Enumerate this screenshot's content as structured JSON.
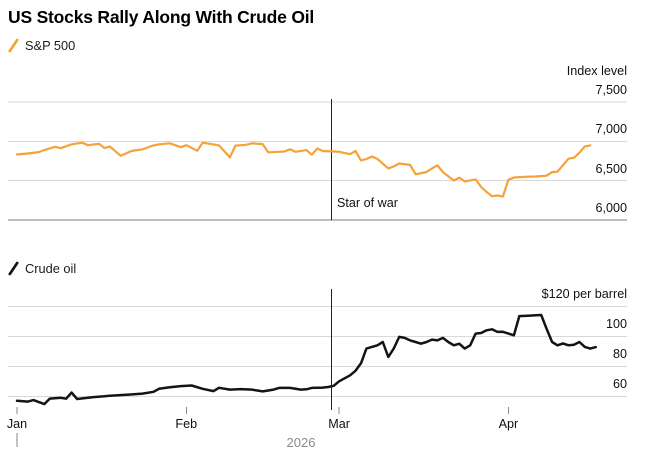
{
  "title": "US Stocks Rally Along With Crude Oil",
  "colors": {
    "sp500_line": "#F7A139",
    "crude_line": "#141414",
    "grid": "#D9D9D9",
    "baseline": "#7D7D7D",
    "war_line": "#222222",
    "tick": "#8A8A8A",
    "month_label": "#111111",
    "year_label": "#8C8C8C"
  },
  "x_axis": {
    "month_ticks": [
      {
        "label": "Jan",
        "day": 1
      },
      {
        "label": "Feb",
        "day": 32
      },
      {
        "label": "Mar",
        "day": 60
      },
      {
        "label": "Apr",
        "day": 91
      }
    ],
    "year": "2026"
  },
  "chart_data": [
    {
      "type": "line",
      "legend": "S&P 500",
      "unit_label": "Index level",
      "color": "#F7A139",
      "x_unit": "day of year 2026",
      "xlim_days": [
        1,
        108
      ],
      "ylim": [
        6000,
        7750
      ],
      "y_ticks": [
        7500,
        7000,
        6500,
        6000
      ],
      "y_tick_labels": [
        "7,500",
        "7,000",
        "6,500",
        "6,000"
      ],
      "baseline_value": 6000,
      "annotation": {
        "label": "Star of war",
        "day": 58.6
      },
      "points": [
        [
          1,
          6832
        ],
        [
          3,
          6845
        ],
        [
          5,
          6862
        ],
        [
          6,
          6888
        ],
        [
          8,
          6930
        ],
        [
          9,
          6912
        ],
        [
          11,
          6962
        ],
        [
          13,
          6982
        ],
        [
          14,
          6950
        ],
        [
          16,
          6968
        ],
        [
          17,
          6915
        ],
        [
          18,
          6935
        ],
        [
          20,
          6815
        ],
        [
          22,
          6878
        ],
        [
          24,
          6898
        ],
        [
          26,
          6948
        ],
        [
          27,
          6962
        ],
        [
          29,
          6975
        ],
        [
          31,
          6925
        ],
        [
          32,
          6950
        ],
        [
          34,
          6880
        ],
        [
          35,
          6982
        ],
        [
          37,
          6960
        ],
        [
          38,
          6948
        ],
        [
          40,
          6795
        ],
        [
          41,
          6945
        ],
        [
          43,
          6956
        ],
        [
          44,
          6975
        ],
        [
          46,
          6965
        ],
        [
          47,
          6860
        ],
        [
          49,
          6866
        ],
        [
          50,
          6870
        ],
        [
          51,
          6898
        ],
        [
          52,
          6866
        ],
        [
          54,
          6888
        ],
        [
          55,
          6830
        ],
        [
          56,
          6908
        ],
        [
          57,
          6876
        ],
        [
          59,
          6870
        ],
        [
          60,
          6866
        ],
        [
          62,
          6836
        ],
        [
          63,
          6878
        ],
        [
          64,
          6756
        ],
        [
          65,
          6775
        ],
        [
          66,
          6806
        ],
        [
          67,
          6776
        ],
        [
          69,
          6655
        ],
        [
          70,
          6680
        ],
        [
          71,
          6718
        ],
        [
          73,
          6700
        ],
        [
          74,
          6580
        ],
        [
          76,
          6610
        ],
        [
          77,
          6655
        ],
        [
          78,
          6695
        ],
        [
          79,
          6610
        ],
        [
          81,
          6500
        ],
        [
          82,
          6538
        ],
        [
          83,
          6490
        ],
        [
          85,
          6515
        ],
        [
          86,
          6420
        ],
        [
          87,
          6355
        ],
        [
          88,
          6302
        ],
        [
          89,
          6310
        ],
        [
          90,
          6298
        ],
        [
          91,
          6510
        ],
        [
          92,
          6540
        ],
        [
          94,
          6548
        ],
        [
          96,
          6552
        ],
        [
          98,
          6562
        ],
        [
          99,
          6608
        ],
        [
          100,
          6615
        ],
        [
          102,
          6778
        ],
        [
          103,
          6790
        ],
        [
          104,
          6855
        ],
        [
          105,
          6935
        ],
        [
          106,
          6948
        ]
      ]
    },
    {
      "type": "line",
      "legend": "Crude oil",
      "unit_label": "$120 per barrel",
      "color": "#141414",
      "x_unit": "day of year 2026",
      "xlim_days": [
        1,
        108
      ],
      "ylim": [
        48,
        120
      ],
      "y_ticks": [
        120,
        100,
        80,
        60
      ],
      "y_tick_labels": [
        "$120 per barrel",
        "100",
        "80",
        "60"
      ],
      "baseline_value": null,
      "annotation": {
        "label": "",
        "day": 58.6
      },
      "points": [
        [
          1,
          57
        ],
        [
          3,
          56.5
        ],
        [
          4,
          57.5
        ],
        [
          6,
          54.8
        ],
        [
          7,
          58.5
        ],
        [
          9,
          59
        ],
        [
          10,
          58.4
        ],
        [
          11,
          62.5
        ],
        [
          12,
          58.2
        ],
        [
          14,
          59
        ],
        [
          15,
          59.5
        ],
        [
          17,
          60
        ],
        [
          18,
          60.4
        ],
        [
          21,
          61
        ],
        [
          24,
          61.8
        ],
        [
          26,
          63
        ],
        [
          27,
          65
        ],
        [
          29,
          66
        ],
        [
          31,
          66.8
        ],
        [
          33,
          67.2
        ],
        [
          35,
          65
        ],
        [
          37,
          63.5
        ],
        [
          38,
          65.7
        ],
        [
          40,
          64.5
        ],
        [
          42,
          64.8
        ],
        [
          44,
          64.5
        ],
        [
          46,
          63.3
        ],
        [
          48,
          64.5
        ],
        [
          49,
          65.6
        ],
        [
          51,
          65.6
        ],
        [
          53,
          64.5
        ],
        [
          54,
          64.7
        ],
        [
          55,
          65.6
        ],
        [
          57,
          65.8
        ],
        [
          58,
          66.2
        ],
        [
          59,
          67
        ],
        [
          60,
          70
        ],
        [
          62,
          74
        ],
        [
          63,
          77
        ],
        [
          64,
          82
        ],
        [
          65,
          91.8
        ],
        [
          66,
          92.9
        ],
        [
          67,
          94
        ],
        [
          68,
          96.2
        ],
        [
          69,
          86.2
        ],
        [
          70,
          91.8
        ],
        [
          71,
          99.6
        ],
        [
          72,
          98.9
        ],
        [
          73,
          97.3
        ],
        [
          74,
          96.2
        ],
        [
          75,
          95.1
        ],
        [
          76,
          96.2
        ],
        [
          77,
          97.8
        ],
        [
          78,
          97.3
        ],
        [
          79,
          98.9
        ],
        [
          80,
          96.2
        ],
        [
          81,
          94
        ],
        [
          82,
          95.1
        ],
        [
          83,
          91.8
        ],
        [
          84,
          94
        ],
        [
          85,
          101.8
        ],
        [
          86,
          102.2
        ],
        [
          87,
          104
        ],
        [
          88,
          104.7
        ],
        [
          89,
          102.9
        ],
        [
          90,
          103
        ],
        [
          91,
          101.8
        ],
        [
          92,
          100.7
        ],
        [
          93,
          113.5
        ],
        [
          95,
          113.8
        ],
        [
          96,
          114
        ],
        [
          97,
          114.2
        ],
        [
          98,
          105
        ],
        [
          99,
          96.2
        ],
        [
          100,
          94
        ],
        [
          101,
          95.2
        ],
        [
          102,
          94
        ],
        [
          103,
          94.4
        ],
        [
          104,
          96.2
        ],
        [
          105,
          92.9
        ],
        [
          106,
          91.8
        ],
        [
          107,
          92.8
        ]
      ]
    }
  ]
}
